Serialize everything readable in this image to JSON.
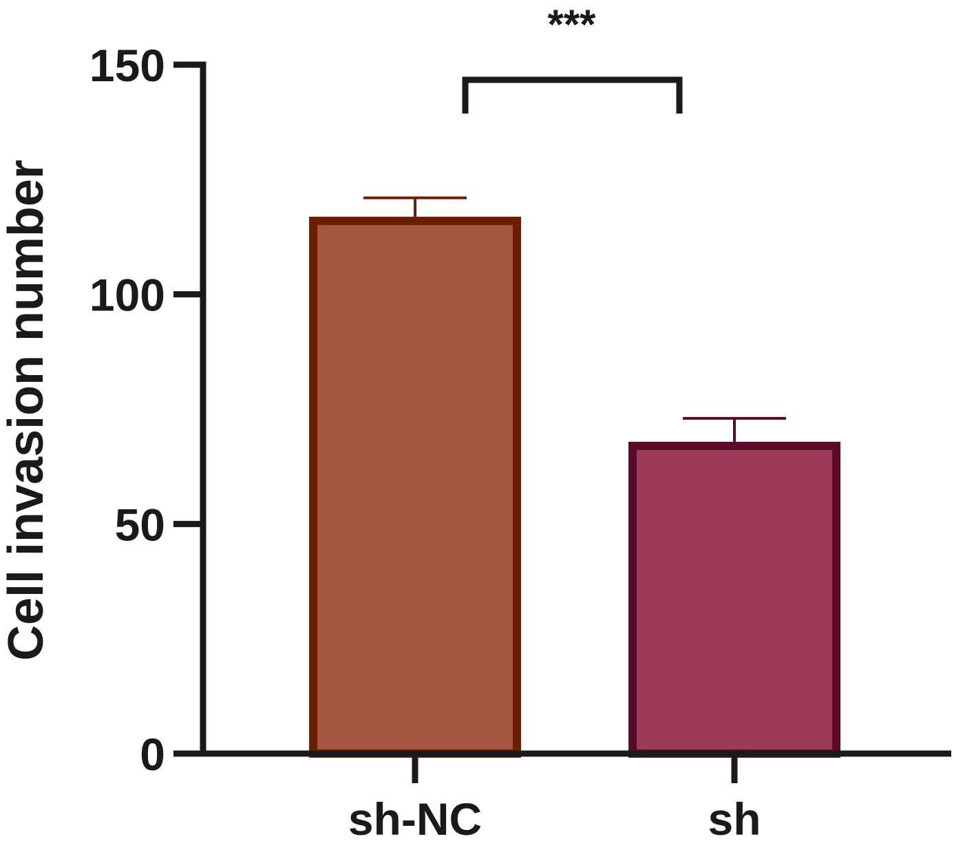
{
  "chart_data": {
    "type": "bar",
    "categories": [
      "sh-NC",
      "sh"
    ],
    "values": [
      116,
      67
    ],
    "errors": [
      5,
      6
    ],
    "ylabel": "Cell invasion number",
    "xlabel": "",
    "ylim": [
      0,
      150
    ],
    "yticks": [
      0,
      50,
      100,
      150
    ],
    "ytick_labels": [
      "0",
      "50",
      "100",
      "150"
    ],
    "grid": false,
    "legend": "none",
    "fill_colors": [
      "#a4573f",
      "#9d3a5a"
    ],
    "edge_colors": [
      "#6b1f00",
      "#5a0a28"
    ],
    "significance": {
      "between": [
        0,
        1
      ],
      "label": "***"
    }
  }
}
